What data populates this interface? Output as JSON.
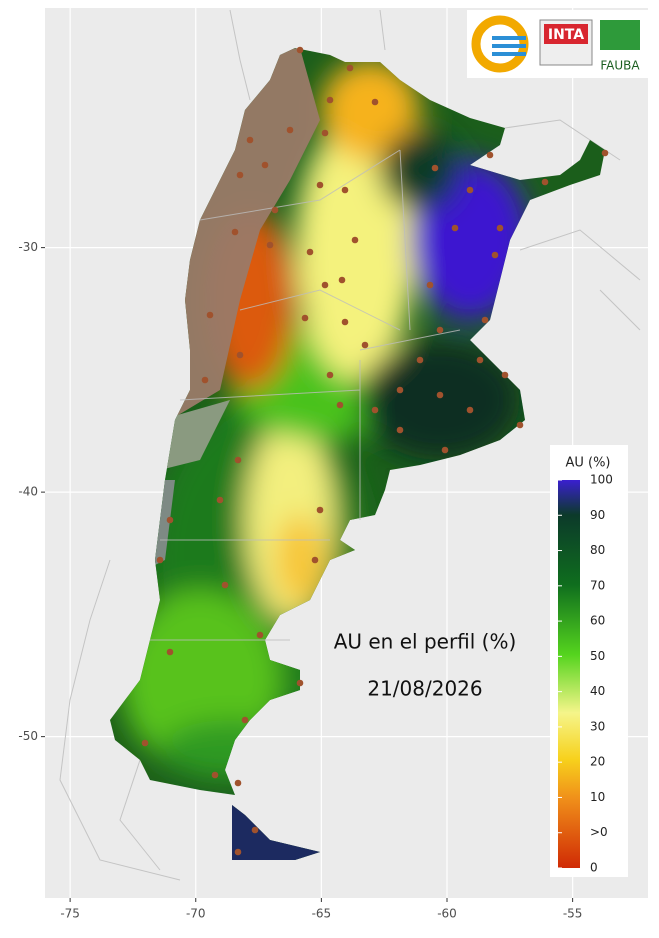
{
  "map": {
    "xlim": [
      -76,
      -52
    ],
    "ylim": [
      -56.6,
      -20.2
    ],
    "xticks": [
      -75,
      -70,
      -65,
      -60,
      -55
    ],
    "yticks": [
      -30,
      -40,
      -50
    ],
    "legend": {
      "title": "AU (%)",
      "labels": [
        100,
        90,
        80,
        70,
        60,
        50,
        40,
        30,
        20,
        10,
        ">0",
        0
      ]
    },
    "annotation": {
      "title": "AU en el perfil (%)",
      "date": "21/08/2026"
    },
    "logos": [
      "INTA",
      "FAUBA"
    ]
  }
}
